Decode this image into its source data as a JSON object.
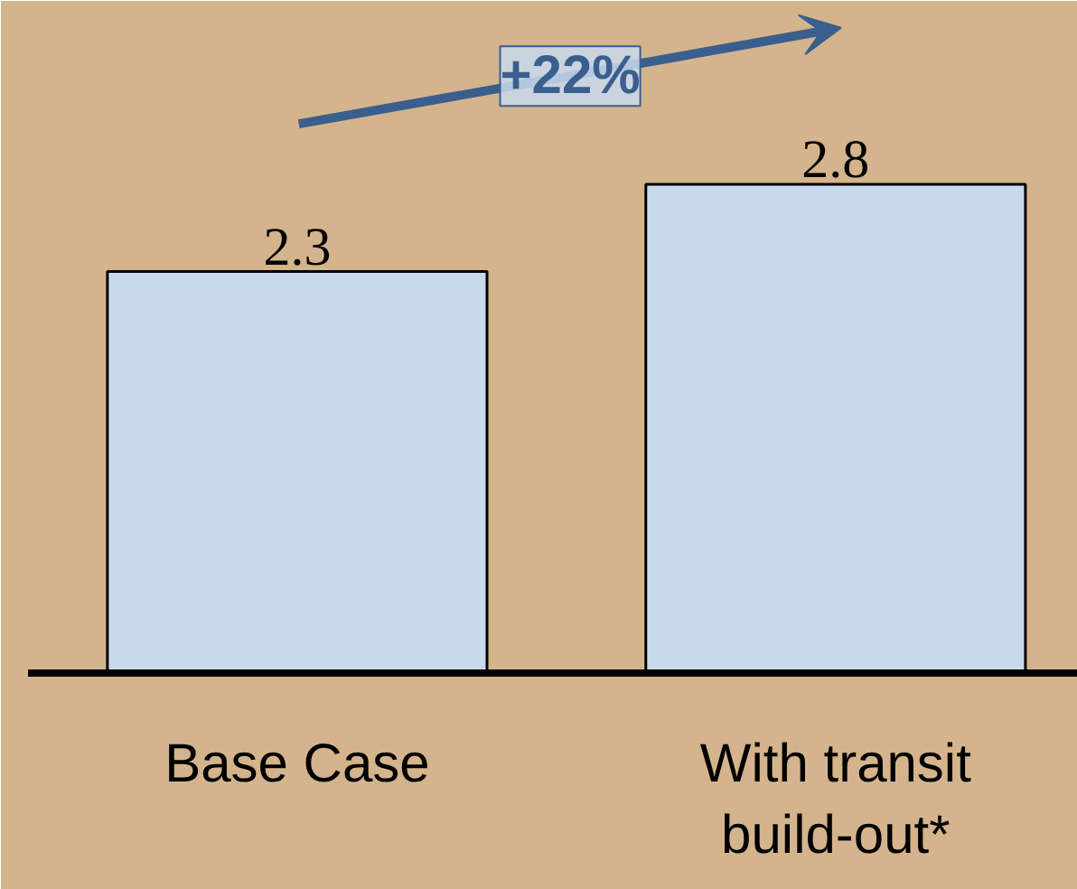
{
  "chart_data": {
    "type": "bar",
    "categories": [
      "Base Case",
      "With transit\nbuild-out*"
    ],
    "values": [
      2.3,
      2.8
    ],
    "color": "#c9d9ec",
    "ylim": [
      0,
      3.85
    ],
    "data_labels": true,
    "grid": false,
    "annotations": [
      "+22%"
    ]
  }
}
